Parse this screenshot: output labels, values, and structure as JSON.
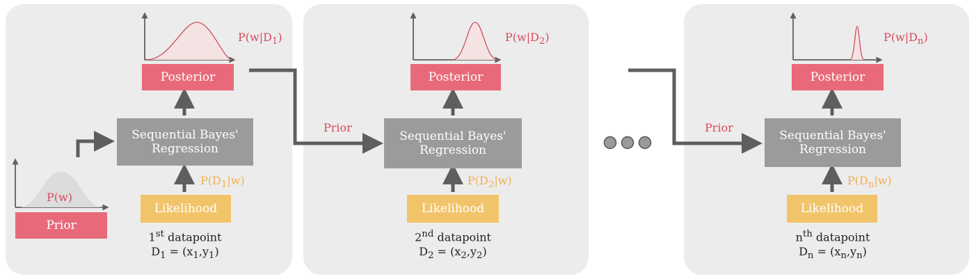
{
  "panels": [
    {
      "posterior_label": "Posterior",
      "regression_line1": "Sequential Bayes'",
      "regression_line2": "Regression",
      "likelihood_label": "Likelihood",
      "posterior_dist_label": "P(w|D",
      "posterior_dist_sub": "1",
      "posterior_dist_close": ")",
      "likelihood_dist_label": "P(D",
      "likelihood_dist_sub": "1",
      "likelihood_dist_close": "|w)",
      "caption_ordinal": "1",
      "caption_ordinal_sup": "st",
      "caption_word": " datapoint",
      "caption_D": "D",
      "caption_D_sub": "1",
      "caption_eq": " = (x",
      "caption_x_sub": "1",
      "caption_comma": ",y",
      "caption_y_sub": "1",
      "caption_close": ")"
    },
    {
      "posterior_label": "Posterior",
      "regression_line1": "Sequential Bayes'",
      "regression_line2": "Regression",
      "likelihood_label": "Likelihood",
      "posterior_dist_label": "P(w|D",
      "posterior_dist_sub": "2",
      "posterior_dist_close": ")",
      "likelihood_dist_label": "P(D",
      "likelihood_dist_sub": "2",
      "likelihood_dist_close": "|w)",
      "caption_ordinal": "2",
      "caption_ordinal_sup": "nd",
      "caption_word": " datapoint",
      "caption_D": "D",
      "caption_D_sub": "2",
      "caption_eq": " = (x",
      "caption_x_sub": "2",
      "caption_comma": ",y",
      "caption_y_sub": "2",
      "caption_close": ")"
    },
    {
      "posterior_label": "Posterior",
      "regression_line1": "Sequential Bayes'",
      "regression_line2": "Regression",
      "likelihood_label": "Likelihood",
      "posterior_dist_label": "P(w|D",
      "posterior_dist_sub": "n",
      "posterior_dist_close": ")",
      "likelihood_dist_label": "P(D",
      "likelihood_dist_sub": "n",
      "likelihood_dist_close": "|w)",
      "caption_ordinal": "n",
      "caption_ordinal_sup": "th",
      "caption_word": " datapoint",
      "caption_D": "D",
      "caption_D_sub": "n",
      "caption_eq": " = (x",
      "caption_x_sub": "n",
      "caption_comma": ",y",
      "caption_y_sub": "n",
      "caption_close": ")"
    }
  ],
  "prior": {
    "box_label": "Prior",
    "dist_label": "P(w)"
  },
  "connector_labels": {
    "prior_1": "Prior",
    "prior_2": "Prior"
  },
  "colors": {
    "posterior": "#e86a7a",
    "regression": "#9b9b9b",
    "likelihood": "#f2c46a",
    "arrow": "#5e5e5e",
    "panel": "#ececec"
  }
}
